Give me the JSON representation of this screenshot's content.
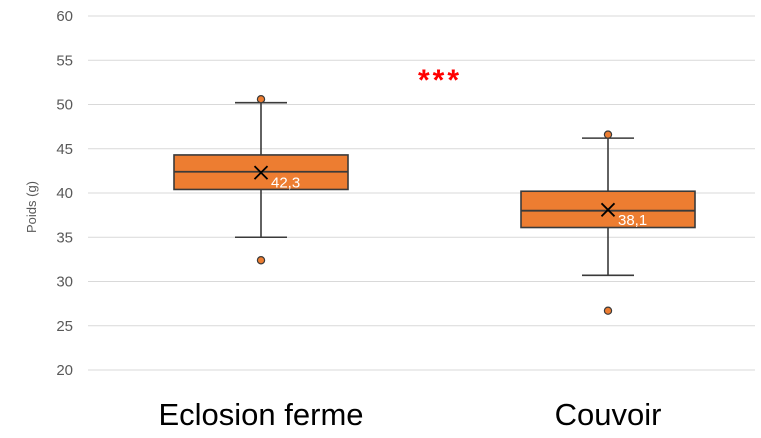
{
  "colors": {
    "box_fill": "#ED7D31",
    "box_stroke": "#3A3A3A",
    "grid": "#D9D9D9",
    "outlier_fill": "#ED7D31",
    "annotation": "#FF0000"
  },
  "chart_data": {
    "type": "boxplot",
    "ylabel": "Poids (g)",
    "ylim": [
      20,
      60
    ],
    "y_ticks": [
      "20",
      "25",
      "30",
      "35",
      "40",
      "45",
      "50",
      "55",
      "60"
    ],
    "grid": true,
    "categories": [
      "Eclosion ferme",
      "Couvoir"
    ],
    "boxes": [
      {
        "category": "Eclosion ferme",
        "whisker_low": 35.0,
        "q1": 40.4,
        "median": 42.4,
        "q3": 44.3,
        "whisker_high": 50.2,
        "mean": 42.3,
        "mean_label": "42,3",
        "outliers": [
          50.6,
          32.4
        ]
      },
      {
        "category": "Couvoir",
        "whisker_low": 30.7,
        "q1": 36.1,
        "median": 38.0,
        "q3": 40.2,
        "whisker_high": 46.2,
        "mean": 38.1,
        "mean_label": "38,1",
        "outliers": [
          46.6,
          26.7
        ]
      }
    ],
    "annotation": "***"
  }
}
